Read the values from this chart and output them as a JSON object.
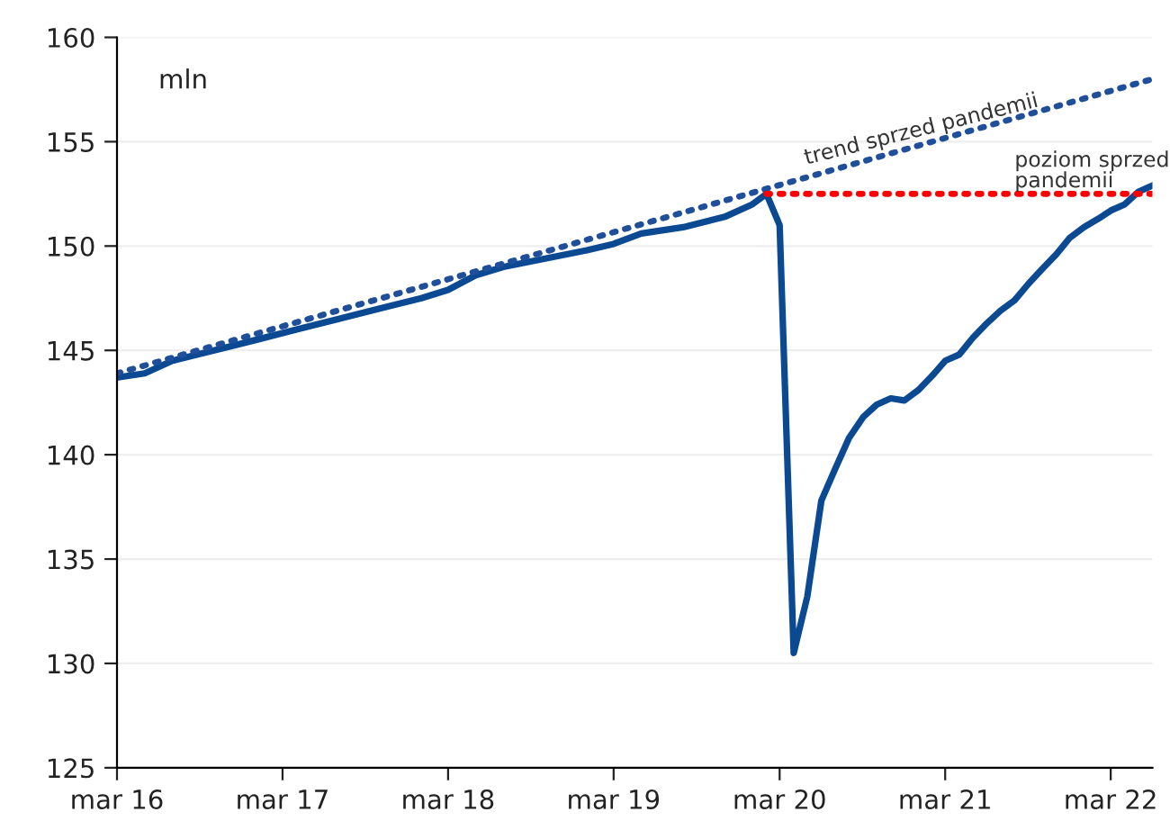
{
  "chart_data": {
    "type": "line",
    "ylabel": "mln",
    "series": [
      {
        "color": "#0b4a92",
        "line_style": "solid",
        "x": [
          "2016-03",
          "2016-05",
          "2016-07",
          "2016-10",
          "2017-01",
          "2017-04",
          "2017-07",
          "2017-10",
          "2018-01",
          "2018-03",
          "2018-05",
          "2018-07",
          "2018-10",
          "2019-01",
          "2019-03",
          "2019-05",
          "2019-08",
          "2019-11",
          "2020-01",
          "2020-02",
          "2020-03",
          "2020-04",
          "2020-05",
          "2020-06",
          "2020-07",
          "2020-08",
          "2020-09",
          "2020-10",
          "2020-11",
          "2020-12",
          "2021-01",
          "2021-02",
          "2021-03",
          "2021-04",
          "2021-05",
          "2021-06",
          "2021-07",
          "2021-08",
          "2021-09",
          "2021-10",
          "2021-11",
          "2021-12",
          "2022-01",
          "2022-02",
          "2022-03",
          "2022-04",
          "2022-05",
          "2022-06"
        ],
        "values": [
          143.7,
          143.9,
          144.5,
          145.0,
          145.5,
          146.0,
          146.5,
          147.0,
          147.5,
          147.9,
          148.6,
          149.0,
          149.4,
          149.8,
          150.1,
          150.6,
          150.9,
          151.4,
          152.0,
          152.5,
          151.0,
          130.5,
          133.2,
          137.8,
          139.3,
          140.8,
          141.8,
          142.4,
          142.7,
          142.6,
          143.1,
          143.8,
          144.5,
          144.8,
          145.6,
          146.3,
          146.9,
          147.4,
          148.2,
          148.9,
          149.6,
          150.4,
          150.9,
          151.3,
          151.7,
          152.0,
          152.6,
          152.9
        ]
      },
      {
        "color": "#1f4e9a",
        "line_style": "dotted",
        "x": [
          "2016-03",
          "2022-06"
        ],
        "values": [
          143.9,
          158.0
        ]
      },
      {
        "color": "#ff0000",
        "line_style": "dotted",
        "x": [
          "2020-02",
          "2022-06"
        ],
        "values": [
          152.5,
          152.5
        ]
      }
    ],
    "annotations": [
      {
        "text": "trend sprzed pandemii",
        "x": "2020-05",
        "y": 153.7
      },
      {
        "text": "poziom sprzed\npandemii",
        "x": "2021-08",
        "y": 152.6
      }
    ],
    "xlim": [
      "2016-03",
      "2022-06"
    ],
    "xticks": [
      {
        "value": "2016-03",
        "label": "mar 16"
      },
      {
        "value": "2017-03",
        "label": "mar 17"
      },
      {
        "value": "2018-03",
        "label": "mar 18"
      },
      {
        "value": "2019-03",
        "label": "mar 19"
      },
      {
        "value": "2020-03",
        "label": "mar 20"
      },
      {
        "value": "2021-03",
        "label": "mar 21"
      },
      {
        "value": "2022-03",
        "label": "mar 22"
      }
    ],
    "ylim": [
      125,
      160
    ],
    "yticks": [
      125,
      130,
      135,
      140,
      145,
      150,
      155,
      160
    ],
    "grid": "y",
    "legend": false
  }
}
